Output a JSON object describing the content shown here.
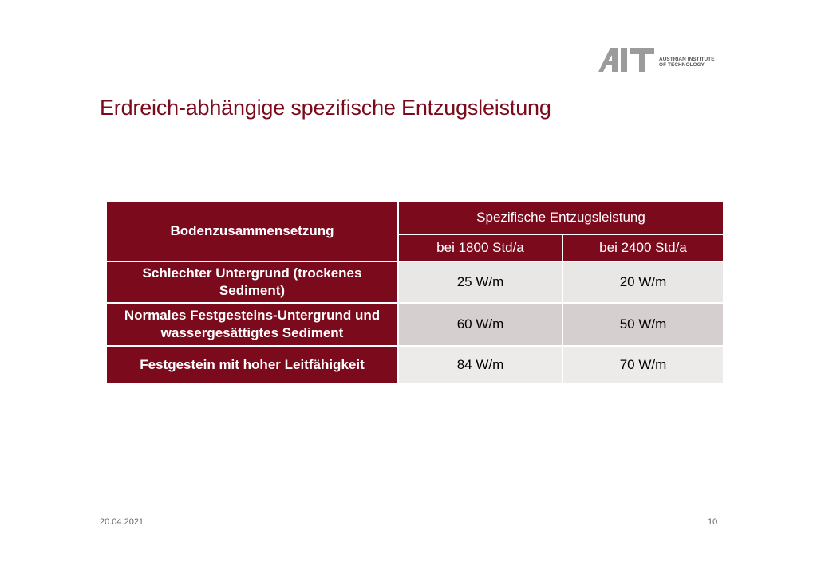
{
  "logo": {
    "wordmark": "AIT",
    "subtitle_line1": "AUSTRIAN INSTITUTE",
    "subtitle_line2": "OF TECHNOLOGY"
  },
  "slide": {
    "title": "Erdreich-abhängige spezifische Entzugsleistung"
  },
  "table": {
    "row_header_label": "Bodenzusammensetzung",
    "group_header_label": "Spezifische Entzugsleistung",
    "columns": [
      "bei 1800 Std/a",
      "bei 2400 Std/a"
    ],
    "rows": [
      {
        "label": "Schlechter Untergrund (trockenes Sediment)",
        "values": [
          "25 W/m",
          "20 W/m"
        ]
      },
      {
        "label": "Normales Festgesteins-Untergrund und wassergesättigtes Sediment",
        "values": [
          "60 W/m",
          "50 W/m"
        ]
      },
      {
        "label": "Festgestein mit hoher Leitfähigkeit",
        "values": [
          "84 W/m",
          "70 W/m"
        ]
      }
    ]
  },
  "footer": {
    "date": "20.04.2021",
    "page_number": "10"
  },
  "colors": {
    "brand": "#7a0a1c",
    "logo_gray": "#9b9b9b",
    "cell_light": "#e9e6e6",
    "cell_mid": "#d6cfcf"
  }
}
